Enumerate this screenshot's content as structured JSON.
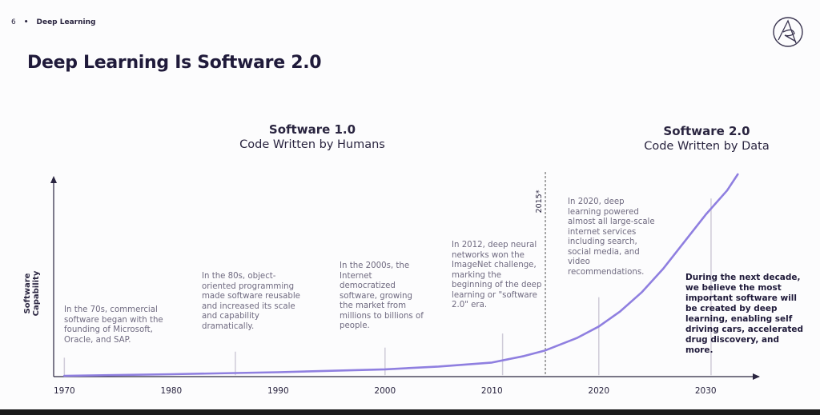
{
  "header": {
    "page_number": "6",
    "separator": "•",
    "section": "Deep Learning",
    "title": "Deep Learning Is Software 2.0"
  },
  "eras": [
    {
      "title": "Software 1.0",
      "subtitle": "Code Written by Humans"
    },
    {
      "title": "Software 2.0",
      "subtitle": "Code Written by Data"
    }
  ],
  "annotations": [
    {
      "text": "In the 70s, commercial software began with the founding of Microsoft, Oracle, and SAP."
    },
    {
      "text": "In the 80s, object-oriented programming made software reusable and increased its scale and capability dramatically."
    },
    {
      "text": "In the 2000s, the Internet democratized software, growing the market from millions to billions of people."
    },
    {
      "text": "In 2012, deep neural networks won the ImageNet challenge, marking the beginning of the deep learning or \"software 2.0\" era."
    },
    {
      "text": "In 2020, deep learning powered almost all large-scale internet services including search, social media, and video recommendations."
    },
    {
      "text": "During the next decade, we believe the most important software will be created by deep learning, enabling self driving cars, accelerated drug discovery, and more."
    }
  ],
  "chart_data": {
    "type": "line",
    "ylabel": "Software Capability",
    "xlabel": "",
    "x_ticks": [
      1970,
      1980,
      1990,
      2000,
      2010,
      2020,
      2030
    ],
    "xlim": [
      1969,
      2035
    ],
    "ylim": [
      0,
      100
    ],
    "series": [
      {
        "color": "#8f7fe0",
        "x": [
          1970,
          1980,
          1990,
          2000,
          2005,
          2010,
          2013,
          2015,
          2018,
          2020,
          2022,
          2024,
          2026,
          2028,
          2030,
          2032,
          2033
        ],
        "y": [
          0,
          0.8,
          1.8,
          3.2,
          4.6,
          6.6,
          9.8,
          12.6,
          18.9,
          24.5,
          32.0,
          41.4,
          53.0,
          66.5,
          80.0,
          92.0,
          100
        ]
      }
    ],
    "marker": {
      "x": 2015,
      "label": "2015*"
    },
    "annotation_anchors": [
      {
        "x": 1970,
        "y_top": 9
      },
      {
        "x": 1986,
        "y_top": 12
      },
      {
        "x": 2000,
        "y_top": 14
      },
      {
        "x": 2011,
        "y_top": 21
      },
      {
        "x": 2020,
        "y_top": 39
      },
      {
        "x": 2030.5,
        "y_top": 88
      }
    ]
  }
}
